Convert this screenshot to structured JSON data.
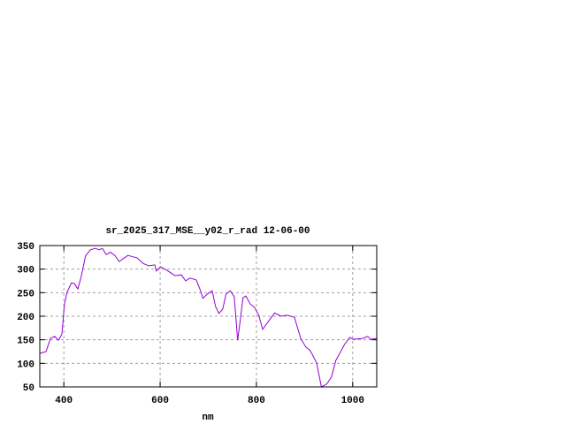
{
  "chart_data": {
    "type": "line",
    "title": "sr_2025_317_MSE__y02_r_rad 12-06-00",
    "xlabel": "nm",
    "ylabel": "",
    "xlim": [
      350,
      1050
    ],
    "ylim": [
      50,
      350
    ],
    "xticks": [
      400,
      600,
      800,
      1000
    ],
    "yticks": [
      50,
      100,
      150,
      200,
      250,
      300,
      350
    ],
    "grid": true,
    "legend": "none",
    "line_color": "#9400d3",
    "series": [
      {
        "x": [
          350,
          363,
          372,
          381,
          389,
          396,
          401,
          407,
          416,
          422,
          429,
          436,
          445,
          455,
          466,
          473,
          480,
          488,
          497,
          506,
          515,
          533,
          552,
          565,
          576,
          589,
          592,
          601,
          615,
          631,
          644,
          653,
          662,
          675,
          684,
          689,
          698,
          708,
          715,
          722,
          730,
          737,
          746,
          754,
          761,
          767,
          772,
          778,
          787,
          796,
          805,
          813,
          827,
          838,
          851,
          864,
          879,
          892,
          903,
          910,
          915,
          925,
          935,
          946,
          956,
          965,
          972,
          983,
          994,
          1001,
          1020,
          1031,
          1038,
          1049
        ],
        "y": [
          121,
          125,
          153,
          157,
          149,
          162,
          224,
          252,
          271,
          269,
          258,
          284,
          328,
          341,
          344,
          341,
          344,
          331,
          336,
          329,
          316,
          329,
          324,
          312,
          307,
          309,
          296,
          305,
          297,
          286,
          288,
          275,
          281,
          277,
          254,
          238,
          247,
          254,
          221,
          206,
          215,
          247,
          254,
          241,
          149,
          196,
          239,
          243,
          226,
          219,
          202,
          172,
          192,
          207,
          200,
          202,
          198,
          153,
          134,
          129,
          121,
          101,
          50,
          56,
          71,
          106,
          119,
          140,
          155,
          151,
          153,
          157,
          151,
          153
        ]
      }
    ]
  }
}
